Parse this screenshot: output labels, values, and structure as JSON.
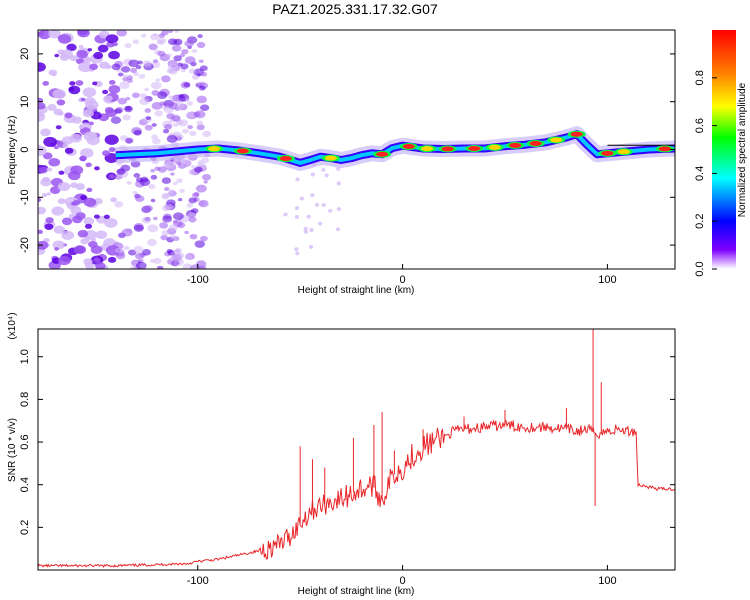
{
  "title": "PAZ1.2025.331.17.32.G07",
  "chart_data": [
    {
      "type": "heatmap",
      "title": "PAZ1.2025.331.17.32.G07",
      "xlabel": "Height of straight line (km)",
      "ylabel": "Frequency (Hz)",
      "xlim": [
        -178,
        133
      ],
      "ylim": [
        -25,
        25
      ],
      "xticks": [
        -100,
        0,
        100
      ],
      "yticks": [
        -20,
        -10,
        0,
        10,
        20
      ],
      "colorbar": {
        "label": "Normalized spectral amplitude",
        "range": [
          0,
          1
        ],
        "ticks": [
          "0.0",
          "0.2",
          "0.4",
          "0.6",
          "0.8"
        ],
        "stops": [
          "#ffffff",
          "#6400ff",
          "#0000ff",
          "#00ffff",
          "#00ff00",
          "#ffff00",
          "#ff8000",
          "#ff0000"
        ]
      },
      "ridge": {
        "x": [
          -140,
          -120,
          -100,
          -90,
          -80,
          -70,
          -60,
          -50,
          -45,
          -40,
          -35,
          -30,
          -25,
          -20,
          -15,
          -10,
          -5,
          0,
          10,
          20,
          30,
          40,
          50,
          60,
          70,
          80,
          85,
          90,
          95,
          100,
          110,
          120,
          133
        ],
        "y": [
          -1.2,
          -0.8,
          0,
          0.2,
          -0.2,
          -0.8,
          -1.5,
          -2.8,
          -2.2,
          -1.5,
          -1.8,
          -2.2,
          -1.8,
          -1.2,
          -0.8,
          -1.0,
          0.3,
          0.8,
          0.2,
          0.1,
          0.2,
          0.2,
          0.7,
          1.0,
          1.5,
          2.5,
          3.2,
          1.0,
          -1.0,
          -0.8,
          -0.4,
          0,
          0.2
        ]
      }
    },
    {
      "type": "line",
      "xlabel": "Height of straight line (km)",
      "ylabel": "SNR (10 * v/v)",
      "y_multiplier": "(x10⁴)",
      "xlim": [
        -178,
        133
      ],
      "ylim": [
        0,
        1.13
      ],
      "xticks": [
        -100,
        0,
        100
      ],
      "yticks": [
        0.2,
        0.4,
        0.6,
        0.8,
        1.0
      ],
      "series": [
        {
          "name": "SNR",
          "color": "#e8262a",
          "x": [
            -178,
            -160,
            -140,
            -120,
            -105,
            -100,
            -90,
            -80,
            -70,
            -60,
            -55,
            -50,
            -45,
            -40,
            -35,
            -30,
            -25,
            -20,
            -15,
            -10,
            -5,
            0,
            5,
            10,
            15,
            20,
            25,
            30,
            40,
            50,
            60,
            70,
            80,
            85,
            90,
            95,
            100,
            105,
            110,
            114,
            115,
            120,
            125,
            133
          ],
          "y": [
            0.02,
            0.02,
            0.02,
            0.025,
            0.03,
            0.04,
            0.05,
            0.07,
            0.09,
            0.12,
            0.16,
            0.22,
            0.28,
            0.3,
            0.32,
            0.33,
            0.36,
            0.38,
            0.4,
            0.33,
            0.44,
            0.48,
            0.54,
            0.58,
            0.6,
            0.62,
            0.65,
            0.66,
            0.67,
            0.68,
            0.67,
            0.67,
            0.66,
            0.65,
            0.66,
            0.64,
            0.65,
            0.66,
            0.65,
            0.65,
            0.4,
            0.39,
            0.38,
            0.38
          ]
        }
      ],
      "spikes": [
        {
          "x": -50,
          "y": 0.58
        },
        {
          "x": -44,
          "y": 0.52
        },
        {
          "x": -38,
          "y": 0.48
        },
        {
          "x": -24,
          "y": 0.62
        },
        {
          "x": -14,
          "y": 0.68
        },
        {
          "x": -10,
          "y": 0.74
        },
        {
          "x": -4,
          "y": 0.56
        },
        {
          "x": 10,
          "y": 0.66
        },
        {
          "x": 30,
          "y": 0.72
        },
        {
          "x": 50,
          "y": 0.75
        },
        {
          "x": 80,
          "y": 0.76
        },
        {
          "x": 93,
          "y": 1.13
        },
        {
          "x": 94,
          "y": 0.3
        },
        {
          "x": 97,
          "y": 0.88
        }
      ]
    }
  ]
}
